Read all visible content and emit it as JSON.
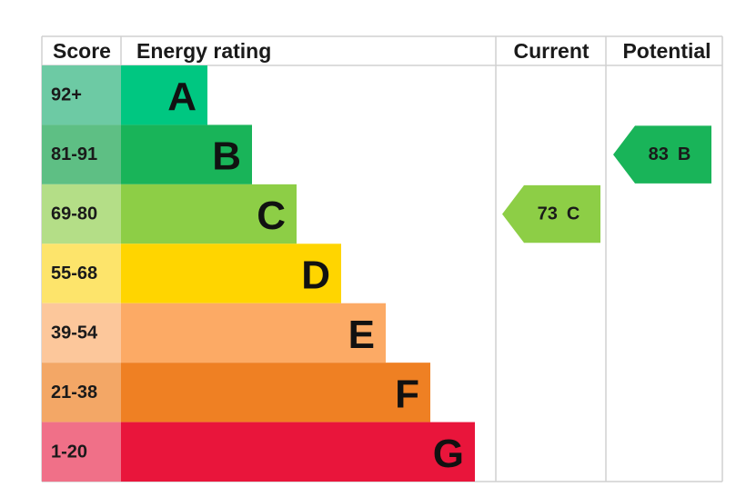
{
  "headers": {
    "score": "Score",
    "rating": "Energy rating",
    "current": "Current",
    "potential": "Potential"
  },
  "bands": [
    {
      "range": "92+",
      "letter": "A",
      "color": "#00c781",
      "score_color": "#6dcaa4"
    },
    {
      "range": "81-91",
      "letter": "B",
      "color": "#19b459",
      "score_color": "#5ebf84"
    },
    {
      "range": "69-80",
      "letter": "C",
      "color": "#8dce46",
      "score_color": "#b4de87"
    },
    {
      "range": "55-68",
      "letter": "D",
      "color": "#ffd500",
      "score_color": "#fde46b"
    },
    {
      "range": "39-54",
      "letter": "E",
      "color": "#fcaa65",
      "score_color": "#fcc79b"
    },
    {
      "range": "21-38",
      "letter": "F",
      "color": "#ef8023",
      "score_color": "#f3a766"
    },
    {
      "range": "1-20",
      "letter": "G",
      "color": "#e9153b",
      "score_color": "#f07088"
    }
  ],
  "current": {
    "score": 73,
    "rating": "C"
  },
  "potential": {
    "score": 83,
    "rating": "B"
  }
}
